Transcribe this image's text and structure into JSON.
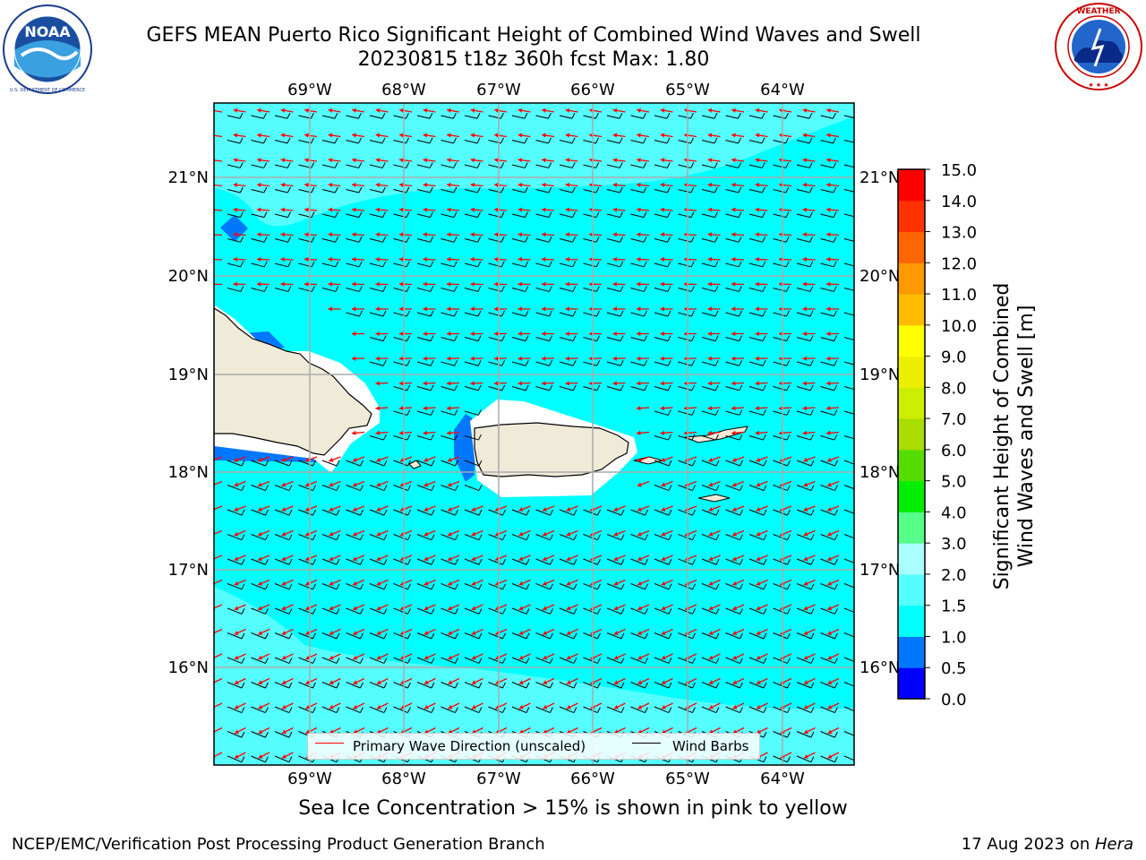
{
  "title": {
    "line1": "GEFS MEAN Puerto Rico Significant Height of Combined Wind Waves and Swell",
    "line2": "20230815 t18z 360h fcst   Max: 1.80"
  },
  "logos": {
    "left": {
      "icon": "noaa-logo",
      "center_text": "NOAA",
      "ring_text": "NATIONAL OCEANIC AND ATMOSPHERIC ADMINISTRATION · U.S. DEPARTMENT OF COMMERCE"
    },
    "right": {
      "icon": "nws-logo",
      "ring_text": "NATIONAL WEATHER SERVICE"
    }
  },
  "map": {
    "lon_labels": [
      "69°W",
      "68°W",
      "67°W",
      "66°W",
      "65°W",
      "64°W"
    ],
    "lat_labels": [
      "21°N",
      "20°N",
      "19°N",
      "18°N",
      "17°N",
      "16°N"
    ],
    "ocean_color": "#00ffff",
    "land_color": "#efebd8",
    "wave_arrow_color": "#ff0000",
    "barb_color": "#000000"
  },
  "legend": {
    "wave_label": "Primary Wave Direction (unscaled)",
    "barb_label": "Wind Barbs"
  },
  "colorbar": {
    "title_line1": "Significant Height of Combined",
    "title_line2": "Wind Waves and Swell [m]",
    "ticks": [
      "15.0",
      "14.0",
      "13.0",
      "12.0",
      "11.0",
      "10.0",
      "9.0",
      "8.0",
      "7.0",
      "6.0",
      "5.0",
      "4.0",
      "3.0",
      "2.0",
      "1.5",
      "1.0",
      "0.5",
      "0.0"
    ],
    "colors_bottom_to_top": [
      "#0000ff",
      "#0077ff",
      "#00ffff",
      "#55ffff",
      "#aaffff",
      "#55ff88",
      "#00ee00",
      "#55dd00",
      "#aadd00",
      "#ccee00",
      "#eeee00",
      "#ffff00",
      "#ffbb00",
      "#ff9900",
      "#ff6600",
      "#ff3300",
      "#ff0000"
    ]
  },
  "ice_note": "Sea Ice Concentration > 15% is shown in pink to yellow",
  "footer": {
    "left": "NCEP/EMC/Verification Post Processing Product Generation Branch",
    "right_date": "17 Aug 2023 on ",
    "right_host": "Hera"
  }
}
